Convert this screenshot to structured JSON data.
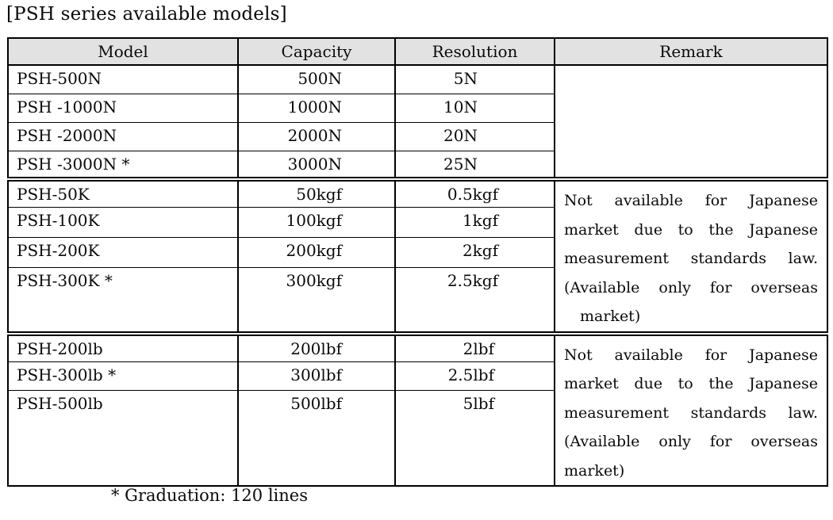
{
  "page": {
    "title": "[PSH series available models]",
    "footnote": "* Graduation: 120 lines"
  },
  "colors": {
    "header_bg": "#e2e2e2",
    "border": "#000000",
    "text": "#0a0a0a",
    "background": "#ffffff"
  },
  "table": {
    "headers": {
      "model": "Model",
      "capacity": "Capacity",
      "resolution": "Resolution",
      "remark": "Remark"
    },
    "groups": [
      {
        "name": "newton-models",
        "rows": [
          {
            "model": "PSH-500N",
            "capacity": "500N",
            "resolution": "5N"
          },
          {
            "model": "PSH -1000N",
            "capacity": "1000N",
            "resolution": "10N"
          },
          {
            "model": "PSH -2000N",
            "capacity": "2000N",
            "resolution": "20N"
          },
          {
            "model": "PSH -3000N *",
            "capacity": "3000N",
            "resolution": "25N"
          }
        ],
        "remark": ""
      },
      {
        "name": "kgf-models",
        "rows": [
          {
            "model": "PSH-50K",
            "capacity": "50kgf",
            "resolution": "0.5kgf"
          },
          {
            "model": "PSH-100K",
            "capacity": "100kgf",
            "resolution": "1kgf"
          },
          {
            "model": "PSH-200K",
            "capacity": "200kgf",
            "resolution": "2kgf"
          },
          {
            "model": "PSH-300K *",
            "capacity": "300kgf",
            "resolution": "2.5kgf"
          }
        ],
        "remark_lines": [
          "Not available for Japanese",
          "market due to the Japanese",
          "measurement standards law.",
          "(Available only for overseas",
          "market)"
        ]
      },
      {
        "name": "lbf-models",
        "rows": [
          {
            "model": "PSH-200lb",
            "capacity": "200lbf",
            "resolution": "2lbf"
          },
          {
            "model": "PSH-300lb *",
            "capacity": "300lbf",
            "resolution": "2.5lbf"
          },
          {
            "model": "PSH-500lb",
            "capacity": "500lbf",
            "resolution": "5lbf"
          }
        ],
        "remark_lines": [
          "Not available for Japanese",
          "market due to the Japanese",
          "measurement standards law.",
          "(Available only for overseas",
          "market)"
        ]
      }
    ]
  }
}
